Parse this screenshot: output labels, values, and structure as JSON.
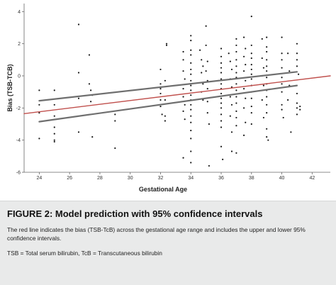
{
  "chart_data": {
    "type": "scatter",
    "title": "",
    "xlabel": "Gestational Age",
    "ylabel": "Bias (TSB-TCB)",
    "xlim": [
      23,
      43.2
    ],
    "ylim": [
      -6,
      4.5
    ],
    "xticks": [
      24,
      26,
      28,
      30,
      32,
      34,
      36,
      38,
      40,
      42
    ],
    "yticks": [
      4,
      2,
      0,
      -2,
      -4,
      -6
    ],
    "grid": false,
    "legend": "none",
    "points": [
      [
        24,
        -0.9
      ],
      [
        24,
        -1.8
      ],
      [
        24,
        -2.3
      ],
      [
        24,
        -3.9
      ],
      [
        25,
        -1.8
      ],
      [
        25,
        -2.5
      ],
      [
        25,
        -3.2
      ],
      [
        25,
        -3.6
      ],
      [
        25,
        -4.0
      ],
      [
        25,
        -4.1
      ],
      [
        25,
        -0.9
      ],
      [
        26.6,
        3.2
      ],
      [
        26.6,
        0.2
      ],
      [
        26.6,
        -1.4
      ],
      [
        26.6,
        -3.5
      ],
      [
        27.3,
        -0.5
      ],
      [
        27.4,
        -0.9
      ],
      [
        27.5,
        -1.2
      ],
      [
        27.4,
        -1.6
      ],
      [
        27.5,
        -3.8
      ],
      [
        27.3,
        1.3
      ],
      [
        29,
        -2.4
      ],
      [
        29,
        -2.8
      ],
      [
        29,
        -4.5
      ],
      [
        32,
        0.4
      ],
      [
        32,
        -0.5
      ],
      [
        32,
        -0.8
      ],
      [
        32,
        -1.1
      ],
      [
        32,
        -1.5
      ],
      [
        32,
        -1.9
      ],
      [
        32.1,
        -2.4
      ],
      [
        32.4,
        2.0
      ],
      [
        32.4,
        1.9
      ],
      [
        32.3,
        -0.3
      ],
      [
        32.3,
        -1.5
      ],
      [
        32.3,
        -2.5
      ],
      [
        32.3,
        -2.8
      ],
      [
        33.5,
        1.5
      ],
      [
        33.5,
        1.0
      ],
      [
        33.5,
        0.3
      ],
      [
        33.6,
        -0.2
      ],
      [
        33.5,
        -0.8
      ],
      [
        33.5,
        -1.3
      ],
      [
        33.6,
        -1.8
      ],
      [
        33.5,
        -2.2
      ],
      [
        33.6,
        -2.7
      ],
      [
        33.5,
        -5.1
      ],
      [
        34,
        2.5
      ],
      [
        34,
        2.2
      ],
      [
        34,
        1.6
      ],
      [
        34,
        1.3
      ],
      [
        34,
        0.8
      ],
      [
        34,
        0.4
      ],
      [
        34,
        0.1
      ],
      [
        34,
        -0.3
      ],
      [
        34,
        -0.6
      ],
      [
        34,
        -0.9
      ],
      [
        34,
        -1.2
      ],
      [
        34,
        -1.5
      ],
      [
        34,
        -1.8
      ],
      [
        34,
        -2.1
      ],
      [
        34,
        -2.5
      ],
      [
        34,
        -2.9
      ],
      [
        34,
        -3.4
      ],
      [
        34,
        -3.9
      ],
      [
        34,
        -4.7
      ],
      [
        34,
        -5.4
      ],
      [
        34.6,
        1.6
      ],
      [
        34.7,
        1.0
      ],
      [
        34.8,
        0.6
      ],
      [
        34.7,
        0.2
      ],
      [
        34.8,
        -0.5
      ],
      [
        34.7,
        -1.0
      ],
      [
        34.8,
        -1.5
      ],
      [
        35,
        3.1
      ],
      [
        35,
        1.9
      ],
      [
        35.1,
        0.9
      ],
      [
        35,
        0.3
      ],
      [
        35.1,
        -0.3
      ],
      [
        35.1,
        -0.8
      ],
      [
        35.1,
        -1.6
      ],
      [
        35.1,
        -2.3
      ],
      [
        35.2,
        -3.0
      ],
      [
        35.2,
        -5.6
      ],
      [
        36,
        1.7
      ],
      [
        36,
        1.2
      ],
      [
        36,
        0.8
      ],
      [
        36,
        0.5
      ],
      [
        36,
        0.2
      ],
      [
        36,
        -0.2
      ],
      [
        36,
        -0.5
      ],
      [
        36,
        -0.8
      ],
      [
        36,
        -1.1
      ],
      [
        36,
        -1.4
      ],
      [
        36,
        -1.7
      ],
      [
        36,
        -2.0
      ],
      [
        36,
        -2.4
      ],
      [
        36,
        -2.8
      ],
      [
        36,
        -3.2
      ],
      [
        36,
        -4.4
      ],
      [
        36.1,
        -5.2
      ],
      [
        36.5,
        1.4
      ],
      [
        36.6,
        0.9
      ],
      [
        36.7,
        0.4
      ],
      [
        36.6,
        -0.2
      ],
      [
        36.7,
        -0.7
      ],
      [
        36.6,
        -1.3
      ],
      [
        36.7,
        -1.8
      ],
      [
        36.6,
        -2.5
      ],
      [
        36.7,
        -3.5
      ],
      [
        36.7,
        -4.7
      ],
      [
        37,
        2.3
      ],
      [
        37,
        1.9
      ],
      [
        37,
        1.5
      ],
      [
        37,
        1.0
      ],
      [
        37,
        0.6
      ],
      [
        37,
        0.2
      ],
      [
        37,
        -0.1
      ],
      [
        37,
        -0.5
      ],
      [
        37,
        -0.9
      ],
      [
        37,
        -1.3
      ],
      [
        37,
        -1.7
      ],
      [
        37,
        -2.2
      ],
      [
        37,
        -2.6
      ],
      [
        37,
        -3.1
      ],
      [
        37,
        -4.8
      ],
      [
        37.5,
        2.4
      ],
      [
        37.6,
        1.7
      ],
      [
        37.5,
        1.2
      ],
      [
        37.6,
        0.7
      ],
      [
        37.5,
        0.3
      ],
      [
        37.6,
        -0.3
      ],
      [
        37.5,
        -0.8
      ],
      [
        37.6,
        -1.4
      ],
      [
        37.5,
        -2.0
      ],
      [
        37.6,
        -2.9
      ],
      [
        37.5,
        -3.7
      ],
      [
        38,
        3.7
      ],
      [
        38,
        1.9
      ],
      [
        38,
        1.4
      ],
      [
        38,
        1.1
      ],
      [
        38,
        0.7
      ],
      [
        38,
        0.4
      ],
      [
        38,
        0.1
      ],
      [
        38,
        -0.2
      ],
      [
        38,
        -0.6
      ],
      [
        38,
        -1.0
      ],
      [
        38,
        -1.4
      ],
      [
        38,
        -1.9
      ],
      [
        38,
        -2.3
      ],
      [
        38,
        -3.0
      ],
      [
        38.7,
        2.3
      ],
      [
        38.7,
        1.1
      ],
      [
        38.8,
        0.5
      ],
      [
        38.7,
        0.0
      ],
      [
        38.8,
        -0.6
      ],
      [
        38.7,
        -1.5
      ],
      [
        38.8,
        -2.6
      ],
      [
        39,
        2.4
      ],
      [
        39,
        1.8
      ],
      [
        39,
        1.5
      ],
      [
        39,
        1.0
      ],
      [
        39,
        0.6
      ],
      [
        39,
        0.3
      ],
      [
        39,
        -0.1
      ],
      [
        39,
        -0.5
      ],
      [
        39,
        -0.9
      ],
      [
        39,
        -1.3
      ],
      [
        39,
        -1.8
      ],
      [
        39,
        -2.3
      ],
      [
        39,
        -3.3
      ],
      [
        39,
        -3.8
      ],
      [
        39.1,
        -4.0
      ],
      [
        40,
        2.4
      ],
      [
        40,
        1.4
      ],
      [
        40,
        1.0
      ],
      [
        40,
        0.5
      ],
      [
        40,
        -0.1
      ],
      [
        40,
        -0.5
      ],
      [
        40,
        -1.0
      ],
      [
        40,
        -1.8
      ],
      [
        40,
        -2.1
      ],
      [
        40.1,
        -2.6
      ],
      [
        40.4,
        1.4
      ],
      [
        40.5,
        0.3
      ],
      [
        40.5,
        -0.6
      ],
      [
        40.4,
        -1.5
      ],
      [
        40.6,
        -3.5
      ],
      [
        41,
        2.0
      ],
      [
        41,
        1.4
      ],
      [
        41,
        1.0
      ],
      [
        41,
        0.6
      ],
      [
        41,
        -1.1
      ],
      [
        41,
        -1.7
      ],
      [
        41,
        -2.0
      ],
      [
        41,
        -2.4
      ],
      [
        41.1,
        0.1
      ],
      [
        41.2,
        -1.9
      ],
      [
        41.2,
        -2.1
      ]
    ],
    "lines": [
      {
        "role": "bias",
        "color": "#c0504d",
        "x": [
          23,
          43.2
        ],
        "y": [
          -2.35,
          0.0
        ]
      },
      {
        "role": "upper-95-ci",
        "color": "#6f6f6f",
        "x": [
          24,
          41
        ],
        "y": [
          -1.55,
          0.25
        ]
      },
      {
        "role": "lower-95-ci",
        "color": "#6f6f6f",
        "x": [
          24,
          41
        ],
        "y": [
          -2.85,
          -0.6
        ]
      }
    ]
  },
  "caption": {
    "title": "FIGURE 2: Model prediction with 95% confidence intervals",
    "text": "The red line indicates the bias (TSB-TcB) across the gestational age range and includes the upper and lower 95% confidence intervals.",
    "abbreviations": "TSB = Total serum bilirubin, TcB = Transcutaneous bilirubin"
  }
}
